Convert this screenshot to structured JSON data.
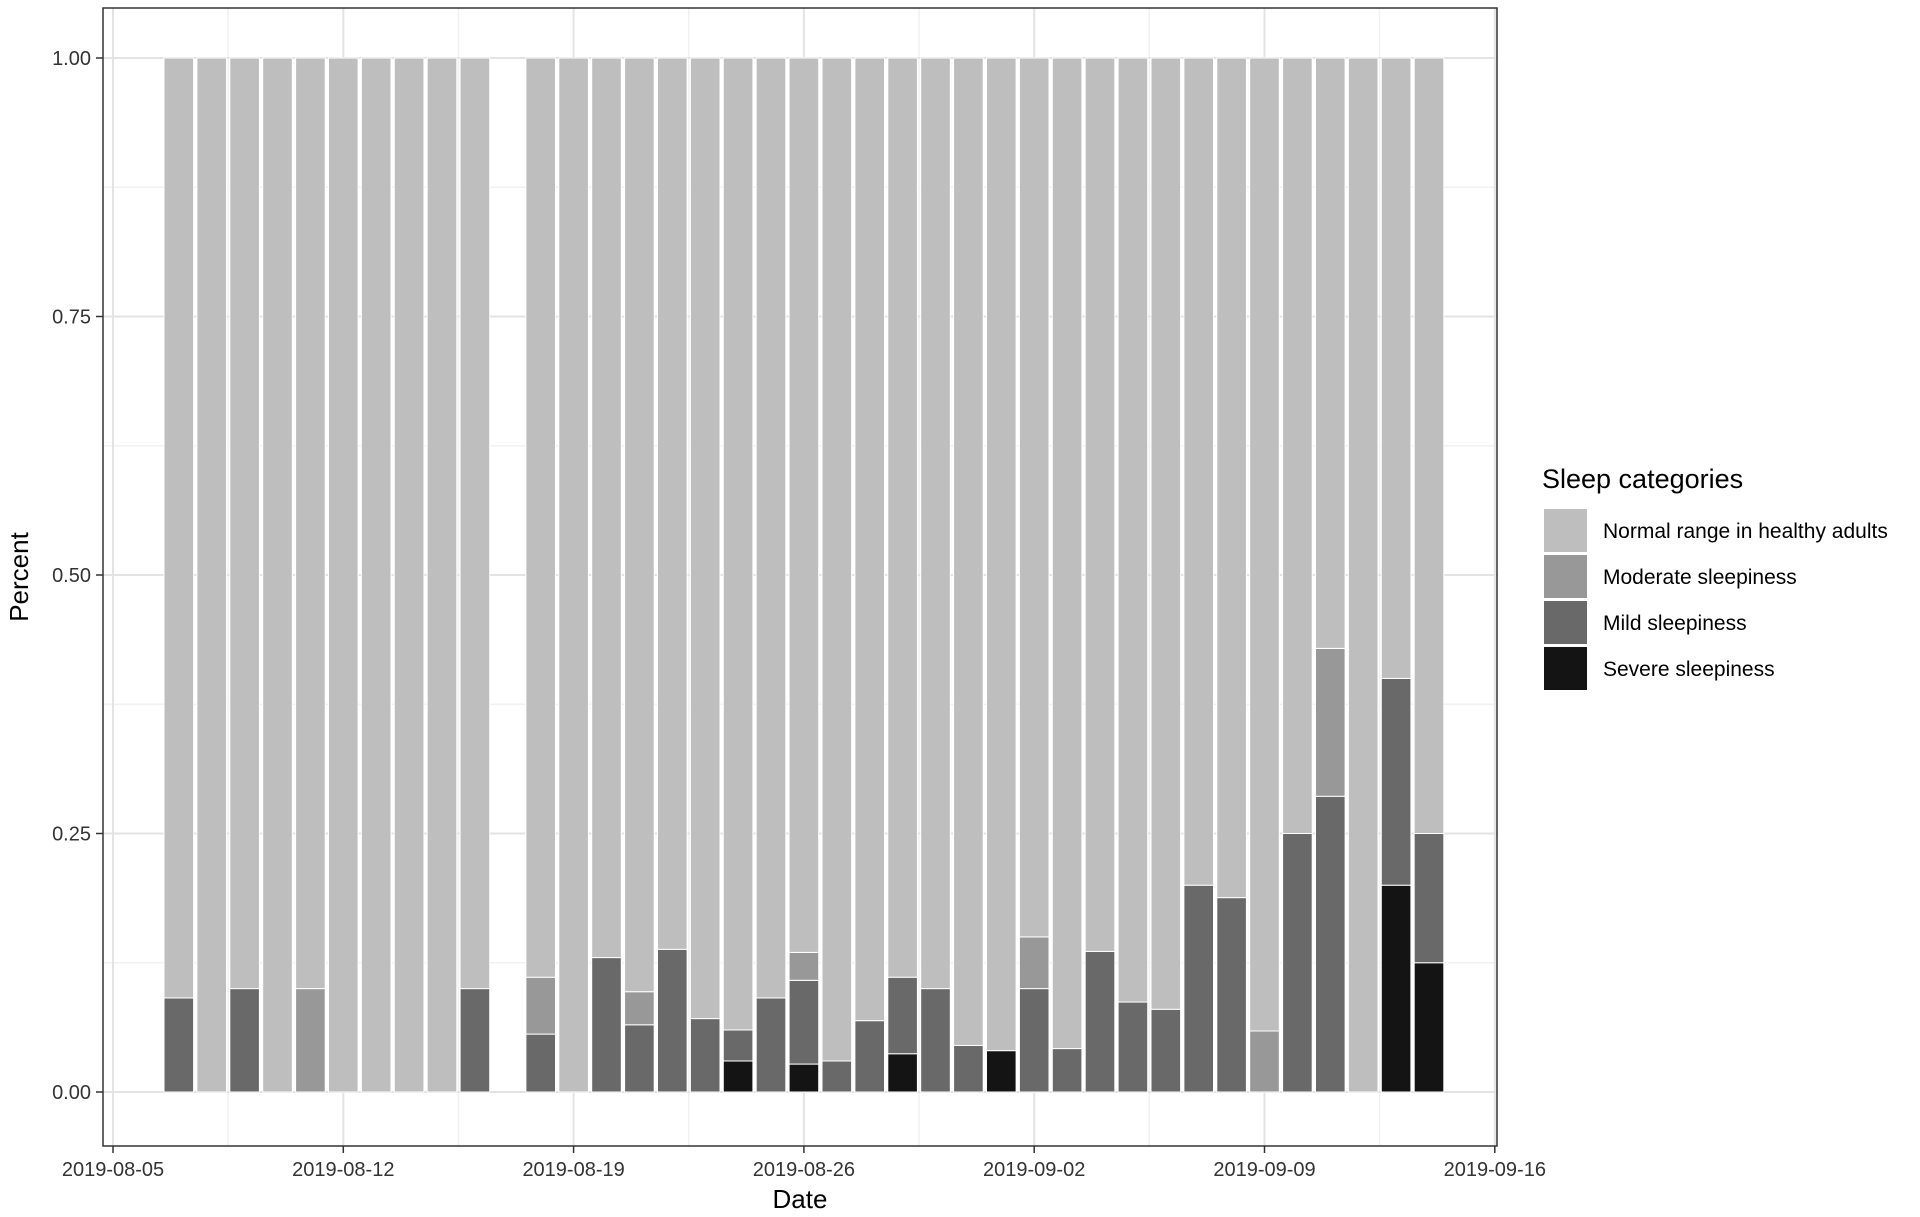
{
  "chart_data": {
    "type": "bar",
    "stacked": true,
    "normalized": true,
    "xlabel": "Date",
    "ylabel": "Percent",
    "ylim": [
      0,
      1
    ],
    "xlim": [
      "2019-08-05",
      "2019-09-16"
    ],
    "x_ticks": [
      "2019-08-05",
      "2019-08-12",
      "2019-08-19",
      "2019-08-26",
      "2019-09-02",
      "2019-09-09",
      "2019-09-16"
    ],
    "y_ticks": [
      "0.00",
      "0.25",
      "0.50",
      "0.75",
      "1.00"
    ],
    "grid": true,
    "legend": {
      "title": "Sleep categories",
      "position": "right",
      "entries": [
        {
          "label": "Normal range in healthy adults",
          "color": "#bebebe"
        },
        {
          "label": "Moderate sleepiness",
          "color": "#989898"
        },
        {
          "label": "Mild sleepiness",
          "color": "#696969"
        },
        {
          "label": "Severe sleepiness",
          "color": "#141414"
        }
      ]
    },
    "stack_order_bottom_to_top": [
      "Severe sleepiness",
      "Mild sleepiness",
      "Moderate sleepiness",
      "Normal range in healthy adults"
    ],
    "bars": [
      {
        "date": "2019-08-07",
        "severe": 0,
        "mild": 0.091,
        "moderate": 0,
        "normal": 0.909
      },
      {
        "date": "2019-08-08",
        "severe": 0,
        "mild": 0,
        "moderate": 0,
        "normal": 1
      },
      {
        "date": "2019-08-09",
        "severe": 0,
        "mild": 0.1,
        "moderate": 0,
        "normal": 0.9
      },
      {
        "date": "2019-08-10",
        "severe": 0,
        "mild": 0,
        "moderate": 0,
        "normal": 1
      },
      {
        "date": "2019-08-11",
        "severe": 0,
        "mild": 0,
        "moderate": 0.1,
        "normal": 0.9
      },
      {
        "date": "2019-08-12",
        "severe": 0,
        "mild": 0,
        "moderate": 0,
        "normal": 1
      },
      {
        "date": "2019-08-13",
        "severe": 0,
        "mild": 0,
        "moderate": 0,
        "normal": 1
      },
      {
        "date": "2019-08-14",
        "severe": 0,
        "mild": 0,
        "moderate": 0,
        "normal": 1
      },
      {
        "date": "2019-08-15",
        "severe": 0,
        "mild": 0,
        "moderate": 0,
        "normal": 1
      },
      {
        "date": "2019-08-16",
        "severe": 0,
        "mild": 0.1,
        "moderate": 0,
        "normal": 0.9
      },
      {
        "date": "2019-08-18",
        "severe": 0,
        "mild": 0.056,
        "moderate": 0.055,
        "normal": 0.889
      },
      {
        "date": "2019-08-19",
        "severe": 0,
        "mild": 0,
        "moderate": 0,
        "normal": 1
      },
      {
        "date": "2019-08-20",
        "severe": 0,
        "mild": 0.13,
        "moderate": 0,
        "normal": 0.87
      },
      {
        "date": "2019-08-21",
        "severe": 0,
        "mild": 0.065,
        "moderate": 0.032,
        "normal": 0.903
      },
      {
        "date": "2019-08-22",
        "severe": 0,
        "mild": 0.138,
        "moderate": 0,
        "normal": 0.862
      },
      {
        "date": "2019-08-23",
        "severe": 0,
        "mild": 0.071,
        "moderate": 0,
        "normal": 0.929
      },
      {
        "date": "2019-08-24",
        "severe": 0.03,
        "mild": 0.03,
        "moderate": 0,
        "normal": 0.94
      },
      {
        "date": "2019-08-25",
        "severe": 0,
        "mild": 0.091,
        "moderate": 0,
        "normal": 0.909
      },
      {
        "date": "2019-08-26",
        "severe": 0.027,
        "mild": 0.081,
        "moderate": 0.027,
        "normal": 0.865
      },
      {
        "date": "2019-08-27",
        "severe": 0,
        "mild": 0.03,
        "moderate": 0,
        "normal": 0.97
      },
      {
        "date": "2019-08-28",
        "severe": 0,
        "mild": 0.069,
        "moderate": 0,
        "normal": 0.931
      },
      {
        "date": "2019-08-29",
        "severe": 0.037,
        "mild": 0.074,
        "moderate": 0,
        "normal": 0.889
      },
      {
        "date": "2019-08-30",
        "severe": 0,
        "mild": 0.1,
        "moderate": 0,
        "normal": 0.9
      },
      {
        "date": "2019-08-31",
        "severe": 0,
        "mild": 0.045,
        "moderate": 0,
        "normal": 0.955
      },
      {
        "date": "2019-09-01",
        "severe": 0.04,
        "mild": 0,
        "moderate": 0,
        "normal": 0.96
      },
      {
        "date": "2019-09-02",
        "severe": 0,
        "mild": 0.1,
        "moderate": 0.05,
        "normal": 0.85
      },
      {
        "date": "2019-09-03",
        "severe": 0,
        "mild": 0.042,
        "moderate": 0,
        "normal": 0.958
      },
      {
        "date": "2019-09-04",
        "severe": 0,
        "mild": 0.136,
        "moderate": 0,
        "normal": 0.864
      },
      {
        "date": "2019-09-05",
        "severe": 0,
        "mild": 0.087,
        "moderate": 0,
        "normal": 0.913
      },
      {
        "date": "2019-09-06",
        "severe": 0,
        "mild": 0.08,
        "moderate": 0,
        "normal": 0.92
      },
      {
        "date": "2019-09-07",
        "severe": 0,
        "mild": 0.2,
        "moderate": 0,
        "normal": 0.8
      },
      {
        "date": "2019-09-08",
        "severe": 0,
        "mild": 0.188,
        "moderate": 0,
        "normal": 0.812
      },
      {
        "date": "2019-09-09",
        "severe": 0,
        "mild": 0,
        "moderate": 0.059,
        "normal": 0.941
      },
      {
        "date": "2019-09-10",
        "severe": 0,
        "mild": 0.25,
        "moderate": 0,
        "normal": 0.75
      },
      {
        "date": "2019-09-11",
        "severe": 0,
        "mild": 0.286,
        "moderate": 0.143,
        "normal": 0.571
      },
      {
        "date": "2019-09-12",
        "severe": 0,
        "mild": 0,
        "moderate": 0,
        "normal": 1
      },
      {
        "date": "2019-09-13",
        "severe": 0.2,
        "mild": 0.2,
        "moderate": 0,
        "normal": 0.6
      },
      {
        "date": "2019-09-14",
        "severe": 0.125,
        "mild": 0.125,
        "moderate": 0,
        "normal": 0.75
      }
    ]
  }
}
